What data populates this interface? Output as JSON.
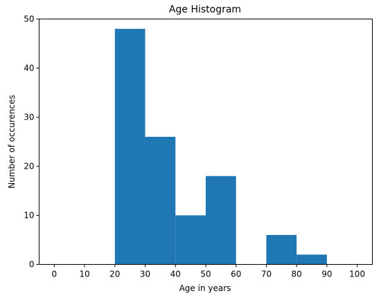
{
  "chart_data": {
    "type": "bar",
    "title": "Age Histogram",
    "xlabel": "Age in years",
    "ylabel": "Number of occurences",
    "bins": [
      {
        "start": 0,
        "end": 10,
        "value": 0
      },
      {
        "start": 10,
        "end": 20,
        "value": 0
      },
      {
        "start": 20,
        "end": 30,
        "value": 48
      },
      {
        "start": 30,
        "end": 40,
        "value": 26
      },
      {
        "start": 40,
        "end": 50,
        "value": 10
      },
      {
        "start": 50,
        "end": 60,
        "value": 18
      },
      {
        "start": 60,
        "end": 70,
        "value": 0
      },
      {
        "start": 70,
        "end": 80,
        "value": 6
      },
      {
        "start": 80,
        "end": 90,
        "value": 2
      },
      {
        "start": 90,
        "end": 100,
        "value": 0
      }
    ],
    "xticks": [
      0,
      10,
      20,
      30,
      40,
      50,
      60,
      70,
      80,
      90,
      100
    ],
    "yticks": [
      0,
      10,
      20,
      30,
      40,
      50
    ],
    "xlim": [
      -5,
      105
    ],
    "ylim": [
      0,
      50
    ],
    "grid": false,
    "bar_color": "#1f77b4"
  }
}
